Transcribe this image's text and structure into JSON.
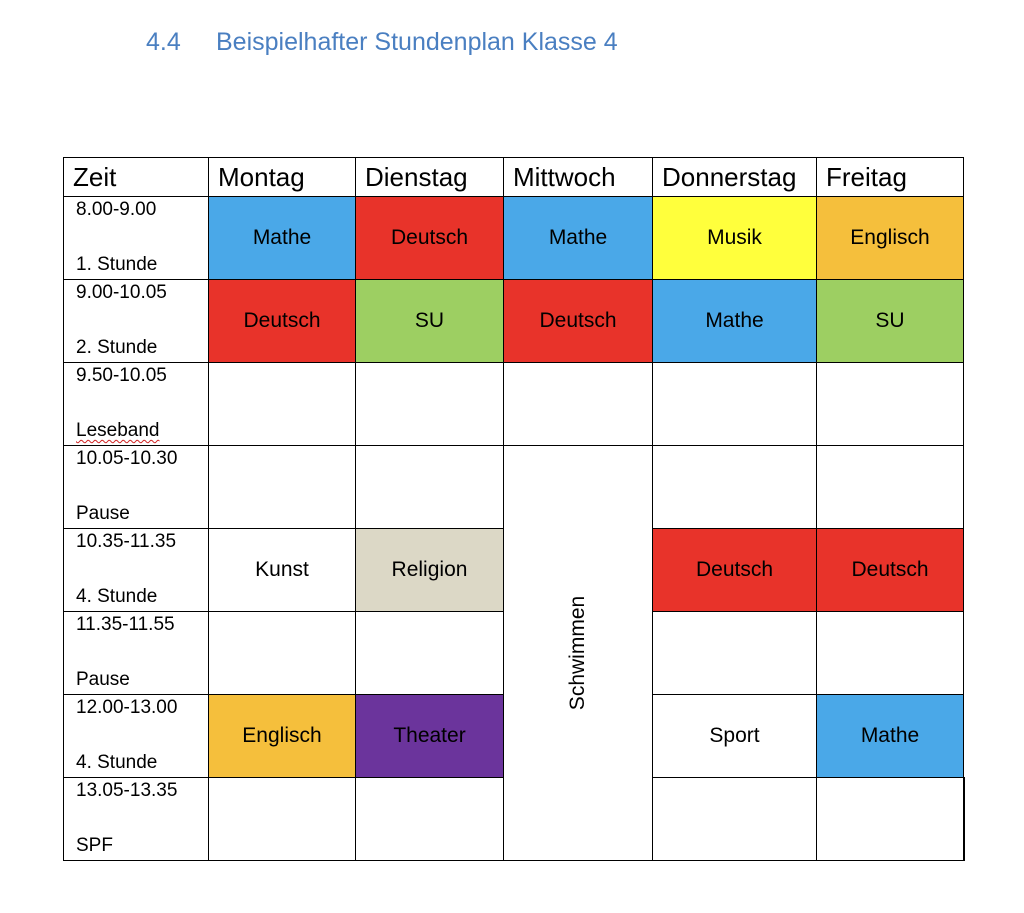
{
  "heading": {
    "number": "4.4",
    "title": "Beispielhafter Stundenplan Klasse 4"
  },
  "header": [
    "Zeit",
    "Montag",
    "Dienstag",
    "Mittwoch",
    "Donnerstag",
    "Freitag"
  ],
  "colors": {
    "blue": "#4aa8e8",
    "red": "#e8332a",
    "green": "#9dcf62",
    "yellow": "#ffff3c",
    "orange": "#f5bf3c",
    "beige": "#dcd8c6",
    "purple": "#6b349c",
    "white": "#ffffff"
  },
  "rows": [
    {
      "time": "8.00-9.00",
      "label": "1. Stunde"
    },
    {
      "time": "9.00-10.05",
      "label": "2. Stunde"
    },
    {
      "time": "9.50-10.05",
      "label": "Leseband"
    },
    {
      "time": "10.05-10.30",
      "label": "Pause"
    },
    {
      "time": "10.35-11.35",
      "label": "4. Stunde"
    },
    {
      "time": "11.35-11.55",
      "label": "Pause"
    },
    {
      "time": "12.00-13.00",
      "label": "4. Stunde"
    },
    {
      "time": "13.05-13.35",
      "label": "SPF"
    }
  ],
  "cells": {
    "r0": {
      "mon": "Mathe",
      "tue": "Deutsch",
      "wed": "Mathe",
      "thu": "Musik",
      "fri": "Englisch"
    },
    "r1": {
      "mon": "Deutsch",
      "tue": "SU",
      "wed": "Deutsch",
      "thu": "Mathe",
      "fri": "SU"
    },
    "r4": {
      "mon": "Kunst",
      "tue": "Religion",
      "thu": "Deutsch",
      "fri": "Deutsch"
    },
    "r6": {
      "mon": "Englisch",
      "tue": "Theater",
      "thu": "Sport",
      "fri": "Mathe"
    }
  },
  "swimming": "Schwimmen"
}
